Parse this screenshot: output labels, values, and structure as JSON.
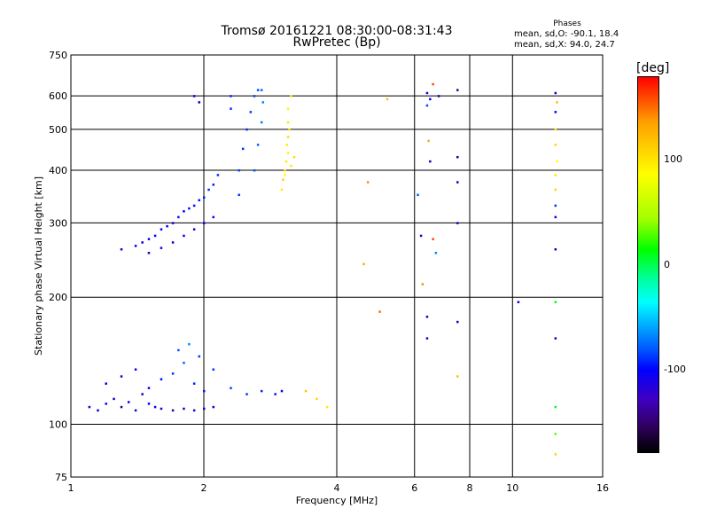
{
  "header": {
    "title": "Tromsø 20161221 08:30:00-08:31:43",
    "subtitle": "RwPretec (Bp)",
    "stats_header": "Phases",
    "stats_line_1": "mean, sd,O: -90.1, 18.4",
    "stats_line_2": "mean, sd,X:  94.0, 24.7"
  },
  "colorbar": {
    "label": "[deg]",
    "ticks": [
      "100",
      "0",
      "-100"
    ],
    "tick_values": [
      100,
      0,
      -100
    ],
    "range": [
      -180,
      180
    ],
    "colors": [
      "#000000",
      "#300060",
      "#0000ff",
      "#0050ff",
      "#00ffff",
      "#00ff00",
      "#ffff00",
      "#ffa000",
      "#ff0000"
    ]
  },
  "chart_data": {
    "type": "scatter",
    "title": "Tromsø 20161221 08:30:00-08:31:43",
    "subtitle": "RwPretec (Bp)",
    "xlabel": "Frequency [MHz]",
    "ylabel": "Stationary phase Virtual Height [km]",
    "xscale": "log",
    "yscale": "log",
    "xlim": [
      1,
      16
    ],
    "ylim": [
      75,
      750
    ],
    "xticks": [
      1,
      2,
      4,
      6,
      8,
      10,
      16
    ],
    "xtick_labels": [
      "1",
      "2",
      "4",
      "6",
      "8",
      "10",
      "16"
    ],
    "yticks": [
      75,
      100,
      200,
      300,
      400,
      500,
      600,
      750
    ],
    "ytick_labels": [
      "75",
      "100",
      "200",
      "300",
      "400",
      "500",
      "600",
      "750"
    ],
    "grid": true,
    "color_encoding": "phase (deg)",
    "series": [
      {
        "points": [
          [
            1.1,
            110,
            -95
          ],
          [
            1.15,
            108,
            -100
          ],
          [
            1.2,
            112,
            -90
          ],
          [
            1.25,
            115,
            -110
          ],
          [
            1.3,
            110,
            -120
          ],
          [
            1.35,
            113,
            -95
          ],
          [
            1.4,
            108,
            -100
          ],
          [
            1.45,
            118,
            -105
          ],
          [
            1.5,
            112,
            -90
          ],
          [
            1.55,
            110,
            -95
          ],
          [
            1.6,
            109,
            -100
          ],
          [
            1.7,
            108,
            -110
          ],
          [
            1.8,
            109,
            -105
          ],
          [
            1.9,
            108,
            -100
          ],
          [
            2.0,
            109,
            -95
          ],
          [
            2.1,
            110,
            -100
          ],
          [
            1.2,
            125,
            -95
          ],
          [
            1.3,
            130,
            -100
          ],
          [
            1.4,
            135,
            -95
          ],
          [
            1.5,
            122,
            -90
          ],
          [
            1.6,
            128,
            -85
          ],
          [
            1.7,
            132,
            -60
          ],
          [
            1.8,
            140,
            -40
          ],
          [
            1.9,
            125,
            -70
          ],
          [
            2.0,
            120,
            -80
          ],
          [
            2.1,
            135,
            -60
          ],
          [
            1.75,
            150,
            -45
          ],
          [
            1.85,
            155,
            -30
          ],
          [
            1.95,
            145,
            -60
          ],
          [
            2.3,
            122,
            -50
          ],
          [
            2.5,
            118,
            -60
          ],
          [
            2.7,
            120,
            -70
          ],
          [
            2.9,
            118,
            -80
          ],
          [
            3.0,
            120,
            -90
          ]
        ]
      },
      {
        "points": [
          [
            1.3,
            260,
            -100
          ],
          [
            1.4,
            265,
            -105
          ],
          [
            1.45,
            270,
            -95
          ],
          [
            1.5,
            275,
            -100
          ],
          [
            1.55,
            280,
            -95
          ],
          [
            1.6,
            290,
            -90
          ],
          [
            1.65,
            295,
            -95
          ],
          [
            1.7,
            300,
            -90
          ],
          [
            1.75,
            310,
            -85
          ],
          [
            1.8,
            320,
            -90
          ],
          [
            1.85,
            325,
            -80
          ],
          [
            1.9,
            330,
            -85
          ],
          [
            1.95,
            340,
            -80
          ],
          [
            2.0,
            345,
            -75
          ],
          [
            2.05,
            360,
            -70
          ],
          [
            2.1,
            370,
            -75
          ],
          [
            2.15,
            390,
            -70
          ],
          [
            1.5,
            255,
            -110
          ],
          [
            1.6,
            262,
            -100
          ],
          [
            1.7,
            270,
            -105
          ],
          [
            1.8,
            280,
            -95
          ],
          [
            1.9,
            290,
            -100
          ],
          [
            2.0,
            300,
            -95
          ],
          [
            2.1,
            310,
            -90
          ],
          [
            2.4,
            350,
            -60
          ],
          [
            2.4,
            400,
            -55
          ],
          [
            2.45,
            450,
            -60
          ],
          [
            2.5,
            500,
            -65
          ],
          [
            2.55,
            550,
            -60
          ],
          [
            2.6,
            600,
            -55
          ],
          [
            2.65,
            620,
            -50
          ],
          [
            2.3,
            600,
            -70
          ],
          [
            2.3,
            560,
            -65
          ],
          [
            1.9,
            600,
            -95
          ],
          [
            1.95,
            580,
            -100
          ],
          [
            2.6,
            400,
            -45
          ],
          [
            2.65,
            460,
            -40
          ],
          [
            2.7,
            520,
            -35
          ],
          [
            2.72,
            580,
            -30
          ],
          [
            2.7,
            620,
            -40
          ]
        ]
      },
      {
        "points": [
          [
            3.0,
            360,
            100
          ],
          [
            3.02,
            380,
            110
          ],
          [
            3.05,
            400,
            105
          ],
          [
            3.07,
            420,
            100
          ],
          [
            3.1,
            440,
            95
          ],
          [
            3.08,
            460,
            100
          ],
          [
            3.1,
            480,
            105
          ],
          [
            3.12,
            500,
            110
          ],
          [
            3.1,
            520,
            100
          ],
          [
            3.05,
            390,
            90
          ],
          [
            3.15,
            410,
            100
          ],
          [
            3.2,
            430,
            105
          ],
          [
            3.1,
            560,
            95
          ],
          [
            3.15,
            600,
            100
          ],
          [
            3.4,
            120,
            120
          ],
          [
            3.6,
            115,
            110
          ],
          [
            3.8,
            110,
            100
          ]
        ]
      },
      {
        "points": [
          [
            4.6,
            240,
            130
          ],
          [
            4.7,
            375,
            140
          ],
          [
            5.0,
            185,
            150
          ],
          [
            5.2,
            590,
            120
          ],
          [
            6.1,
            350,
            -40
          ],
          [
            6.2,
            280,
            -110
          ],
          [
            6.25,
            215,
            140
          ],
          [
            6.4,
            610,
            -100
          ],
          [
            6.5,
            590,
            -90
          ],
          [
            6.4,
            570,
            -50
          ],
          [
            6.6,
            640,
            160
          ],
          [
            6.8,
            600,
            -110
          ],
          [
            6.4,
            180,
            -110
          ],
          [
            6.4,
            160,
            -115
          ],
          [
            6.45,
            470,
            130
          ],
          [
            6.5,
            420,
            -110
          ],
          [
            6.6,
            275,
            160
          ],
          [
            6.7,
            255,
            -30
          ],
          [
            7.5,
            620,
            -120
          ],
          [
            7.5,
            430,
            -120
          ],
          [
            7.5,
            375,
            -110
          ],
          [
            7.5,
            300,
            -110
          ],
          [
            7.5,
            175,
            -115
          ],
          [
            7.5,
            130,
            120
          ],
          [
            10.3,
            195,
            -100
          ],
          [
            12.5,
            610,
            -100
          ],
          [
            12.6,
            580,
            120
          ],
          [
            12.5,
            550,
            -90
          ],
          [
            12.5,
            500,
            100
          ],
          [
            12.5,
            460,
            110
          ],
          [
            12.6,
            420,
            90
          ],
          [
            12.5,
            390,
            100
          ],
          [
            12.5,
            360,
            110
          ],
          [
            12.5,
            330,
            -60
          ],
          [
            12.5,
            310,
            -90
          ],
          [
            12.5,
            260,
            -110
          ],
          [
            12.5,
            195,
            40
          ],
          [
            12.5,
            160,
            -110
          ],
          [
            12.5,
            110,
            40
          ],
          [
            12.5,
            95,
            60
          ],
          [
            12.5,
            85,
            110
          ]
        ]
      }
    ]
  }
}
